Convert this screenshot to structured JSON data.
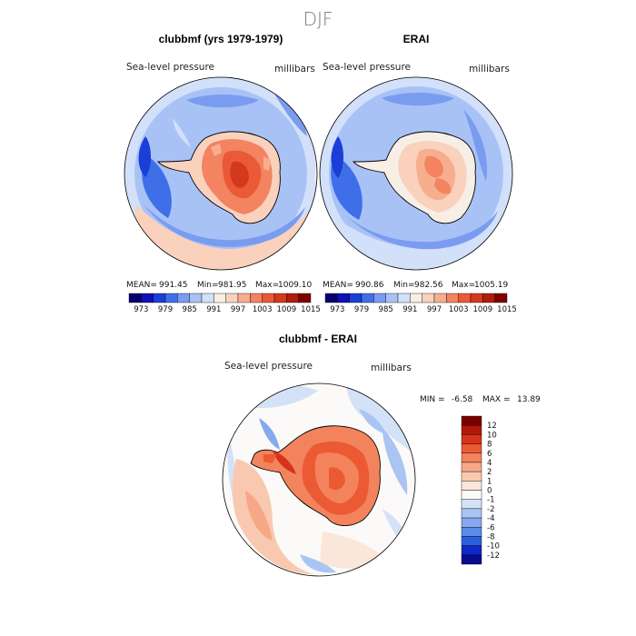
{
  "figure": {
    "title": "DJF"
  },
  "panels": [
    {
      "title": "clubbmf (yrs 1979-1979)",
      "variable": "Sea-level pressure",
      "units": "millibars",
      "mean_label": "MEAN=",
      "mean": "991.45",
      "min_label": "Min=",
      "min": "981.95",
      "max_label": "Max=",
      "max": "1009.10"
    },
    {
      "title": "ERAI",
      "variable": "Sea-level pressure",
      "units": "millibars",
      "mean_label": "MEAN=",
      "mean": "990.86",
      "min_label": "Min=",
      "min": "982.56",
      "max_label": "Max=",
      "max": "1005.19"
    },
    {
      "title": "clubbmf - ERAI",
      "variable": "Sea-level pressure",
      "units": "millibars",
      "min_label": "MIN =",
      "min": "-6.58",
      "max_label": "MAX =",
      "max": "13.89"
    }
  ],
  "chart_data": [
    {
      "type": "heatmap",
      "projection": "south-polar-stereographic",
      "title": "clubbmf (yrs 1979-1979)",
      "variable": "Sea-level pressure",
      "units": "millibars",
      "stats": {
        "mean": 991.45,
        "min": 981.95,
        "max": 1009.1
      },
      "colorbar": {
        "orientation": "horizontal",
        "levels": [
          "973",
          "979",
          "985",
          "991",
          "997",
          "1003",
          "1009",
          "1015"
        ],
        "colors": [
          "#08006e",
          "#1010b8",
          "#1a3fd8",
          "#3f6fe8",
          "#7a9cf0",
          "#a9c2f6",
          "#d2e0fa",
          "#f7efe6",
          "#f9d1bc",
          "#f7ae8e",
          "#f38361",
          "#ea5a36",
          "#d4381d",
          "#b01d10",
          "#800000"
        ]
      }
    },
    {
      "type": "heatmap",
      "projection": "south-polar-stereographic",
      "title": "ERAI",
      "variable": "Sea-level pressure",
      "units": "millibars",
      "stats": {
        "mean": 990.86,
        "min": 982.56,
        "max": 1005.19
      },
      "colorbar": {
        "orientation": "horizontal",
        "levels": [
          "973",
          "979",
          "985",
          "991",
          "997",
          "1003",
          "1009",
          "1015"
        ],
        "colors": [
          "#08006e",
          "#1010b8",
          "#1a3fd8",
          "#3f6fe8",
          "#7a9cf0",
          "#a9c2f6",
          "#d2e0fa",
          "#f7efe6",
          "#f9d1bc",
          "#f7ae8e",
          "#f38361",
          "#ea5a36",
          "#d4381d",
          "#b01d10",
          "#800000"
        ]
      }
    },
    {
      "type": "heatmap",
      "projection": "south-polar-stereographic",
      "title": "clubbmf - ERAI",
      "variable": "Sea-level pressure",
      "units": "millibars",
      "stats": {
        "min": -6.58,
        "max": 13.89
      },
      "colorbar": {
        "orientation": "vertical",
        "levels": [
          "12",
          "10",
          "8",
          "6",
          "4",
          "2",
          "1",
          "0",
          "-1",
          "-2",
          "-4",
          "-6",
          "-8",
          "-10",
          "-12"
        ],
        "colors": [
          "#7a0000",
          "#b01808",
          "#d8331a",
          "#eb5a33",
          "#f3835c",
          "#f6a886",
          "#f8c9b0",
          "#fbe6da",
          "#fbfaf8",
          "#d4e2f7",
          "#aac5f3",
          "#86a9ef",
          "#5c8ae8",
          "#2a5fe0",
          "#0f28c8",
          "#080a90"
        ]
      }
    }
  ]
}
